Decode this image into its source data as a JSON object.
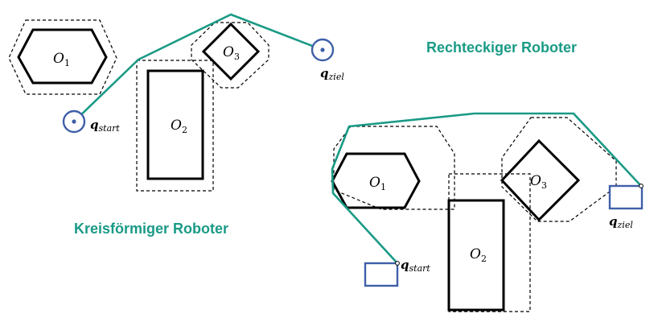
{
  "colors": {
    "path": "#1a9a86",
    "robot": "#3f5fa8",
    "heading": "#1a9a86",
    "obstacle": "#000000"
  },
  "left_panel": {
    "heading": "Kreisförmiger Roboter",
    "obstacles": [
      {
        "base": "O",
        "sub": "1"
      },
      {
        "base": "O",
        "sub": "2"
      },
      {
        "base": "O",
        "sub": "3"
      }
    ],
    "start": {
      "base": "q",
      "sub": "start"
    },
    "goal": {
      "base": "q",
      "sub": "ziel"
    }
  },
  "right_panel": {
    "heading": "Rechteckiger Roboter",
    "obstacles": [
      {
        "base": "O",
        "sub": "1"
      },
      {
        "base": "O",
        "sub": "2"
      },
      {
        "base": "O",
        "sub": "3"
      }
    ],
    "start": {
      "base": "q",
      "sub": "start"
    },
    "goal": {
      "base": "q",
      "sub": "ziel"
    }
  }
}
